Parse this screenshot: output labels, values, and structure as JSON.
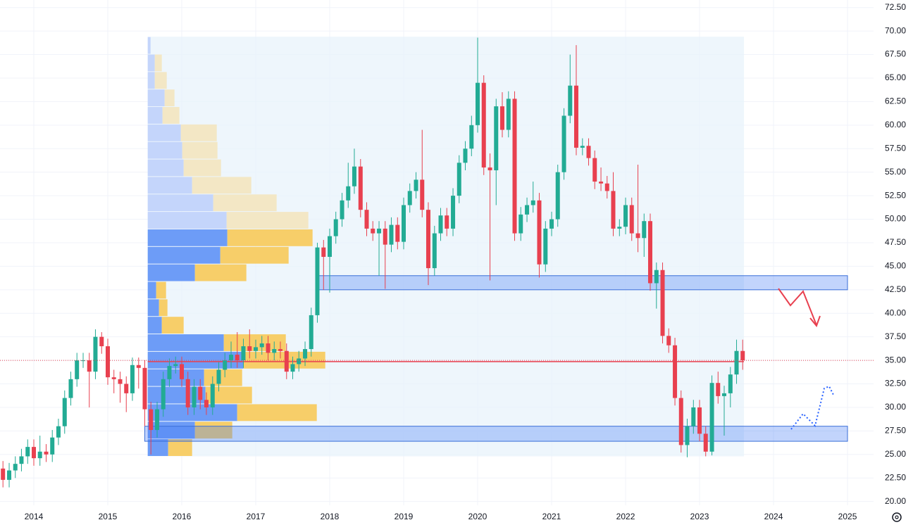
{
  "chart_data": {
    "type": "candlestick",
    "x": [
      2013.583,
      2013.667,
      2013.75,
      2013.833,
      2013.917,
      2014.0,
      2014.083,
      2014.167,
      2014.25,
      2014.333,
      2014.417,
      2014.5,
      2014.583,
      2014.667,
      2014.75,
      2014.833,
      2014.917,
      2015.0,
      2015.083,
      2015.167,
      2015.25,
      2015.333,
      2015.417,
      2015.5,
      2015.583,
      2015.667,
      2015.75,
      2015.833,
      2015.917,
      2016.0,
      2016.083,
      2016.167,
      2016.25,
      2016.333,
      2016.417,
      2016.5,
      2016.583,
      2016.667,
      2016.75,
      2016.833,
      2016.917,
      2017.0,
      2017.083,
      2017.167,
      2017.25,
      2017.333,
      2017.417,
      2017.5,
      2017.583,
      2017.667,
      2017.75,
      2017.833,
      2017.917,
      2018.0,
      2018.083,
      2018.167,
      2018.25,
      2018.333,
      2018.417,
      2018.5,
      2018.583,
      2018.667,
      2018.75,
      2018.833,
      2018.917,
      2019.0,
      2019.083,
      2019.167,
      2019.25,
      2019.333,
      2019.417,
      2019.5,
      2019.583,
      2019.667,
      2019.75,
      2019.833,
      2019.917,
      2020.0,
      2020.083,
      2020.167,
      2020.25,
      2020.333,
      2020.417,
      2020.5,
      2020.583,
      2020.667,
      2020.75,
      2020.833,
      2020.917,
      2021.0,
      2021.083,
      2021.167,
      2021.25,
      2021.333,
      2021.417,
      2021.5,
      2021.583,
      2021.667,
      2021.75,
      2021.833,
      2021.917,
      2022.0,
      2022.083,
      2022.167,
      2022.25,
      2022.333,
      2022.417,
      2022.5,
      2022.583,
      2022.667,
      2022.75,
      2022.833,
      2022.917,
      2023.0,
      2023.083,
      2023.167,
      2023.25,
      2023.333,
      2023.417,
      2023.5,
      2023.583
    ],
    "open": [
      23.5,
      22.3,
      23.3,
      24.0,
      24.8,
      25.8,
      24.6,
      25.3,
      25.0,
      26.8,
      28.0,
      31.0,
      33.0,
      35.0,
      35.0,
      33.8,
      37.5,
      36.5,
      33.2,
      33.0,
      32.5,
      31.5,
      34.5,
      34.2,
      29.8,
      27.6,
      29.8,
      33.0,
      34.4,
      34.6,
      33.0,
      30.0,
      32.2,
      30.8,
      30.0,
      32.5,
      34.0,
      35.0,
      35.6,
      35.0,
      36.5,
      36.0,
      36.4,
      36.8,
      35.8,
      36.2,
      36.0,
      33.8,
      34.6,
      35.2,
      36.2,
      39.8,
      47.0,
      46.0,
      48.2,
      50.0,
      52.0,
      53.5,
      55.6,
      51.0,
      49.0,
      48.5,
      49.0,
      47.3,
      49.4,
      47.6,
      51.5,
      53.0,
      54.2,
      51.0,
      44.8,
      48.5,
      50.4,
      49.0,
      52.5,
      56.0,
      57.5,
      60.0,
      64.5,
      55.5,
      55.2,
      62.0,
      59.5,
      62.8,
      48.5,
      50.5,
      51.5,
      52.0,
      45.2,
      49.0,
      50.0,
      55.0,
      61.0,
      64.2,
      57.6,
      57.8,
      56.5,
      54.0,
      53.8,
      53.0,
      49.0,
      49.2,
      51.5,
      48.5,
      48.0,
      49.8,
      43.2,
      44.6,
      37.6,
      36.6,
      31.0,
      26.0,
      28.0,
      30.0,
      27.2,
      25.3,
      32.6,
      31.2,
      31.5,
      33.5,
      36.0
    ],
    "high": [
      24.3,
      24.1,
      24.8,
      25.6,
      26.6,
      26.6,
      27.0,
      26.1,
      27.6,
      28.8,
      31.8,
      33.8,
      35.8,
      35.8,
      35.8,
      38.3,
      38.0,
      37.3,
      34.0,
      33.8,
      33.3,
      35.3,
      35.3,
      35.0,
      30.6,
      30.6,
      33.8,
      35.2,
      35.4,
      35.4,
      33.8,
      33.0,
      33.0,
      31.6,
      33.3,
      34.8,
      35.8,
      37.0,
      38.0,
      37.3,
      38.3,
      37.2,
      37.6,
      37.6,
      37.0,
      37.0,
      36.8,
      35.4,
      36.0,
      37.0,
      40.6,
      47.5,
      47.8,
      49.0,
      50.8,
      52.8,
      56.0,
      57.5,
      56.4,
      51.8,
      49.8,
      49.8,
      49.8,
      50.2,
      50.2,
      52.3,
      53.8,
      55.0,
      59.5,
      51.8,
      49.3,
      51.2,
      51.2,
      53.3,
      56.8,
      58.3,
      61.0,
      69.3,
      65.3,
      57.0,
      62.8,
      63.5,
      63.6,
      63.6,
      51.3,
      52.3,
      54.0,
      52.8,
      49.8,
      50.8,
      55.8,
      61.8,
      67.5,
      68.5,
      58.6,
      58.6,
      57.3,
      55.5,
      54.6,
      55.0,
      50.0,
      52.3,
      52.3,
      55.8,
      50.6,
      50.6,
      45.4,
      45.4,
      38.4,
      37.4,
      31.8,
      28.8,
      30.8,
      30.8,
      28.0,
      33.4,
      33.8,
      32.3,
      34.3,
      37.2,
      37.2
    ],
    "low": [
      21.5,
      21.5,
      22.5,
      23.2,
      24.0,
      23.8,
      23.8,
      24.2,
      24.2,
      26.0,
      27.2,
      30.2,
      32.2,
      34.2,
      30.0,
      33.0,
      35.7,
      32.4,
      31.5,
      30.5,
      29.5,
      30.7,
      32.0,
      28.0,
      25.0,
      26.8,
      29.0,
      32.2,
      33.6,
      32.2,
      29.2,
      29.2,
      29.8,
      29.2,
      29.2,
      31.7,
      33.2,
      34.2,
      34.2,
      34.2,
      35.2,
      35.2,
      35.6,
      35.0,
      35.0,
      35.2,
      33.0,
      33.0,
      33.8,
      34.4,
      35.4,
      39.0,
      42.5,
      42.2,
      47.4,
      49.2,
      51.2,
      52.7,
      50.2,
      48.2,
      47.7,
      44.0,
      42.6,
      46.5,
      46.8,
      46.8,
      50.7,
      52.2,
      50.2,
      43.0,
      44.0,
      47.7,
      48.2,
      48.2,
      51.7,
      55.2,
      56.7,
      59.2,
      54.7,
      43.5,
      51.5,
      58.7,
      58.7,
      47.7,
      47.7,
      49.7,
      50.7,
      43.8,
      44.4,
      48.2,
      49.2,
      54.2,
      60.2,
      56.8,
      56.8,
      55.7,
      53.2,
      53.0,
      52.2,
      48.2,
      48.2,
      48.4,
      47.7,
      46.5,
      46.0,
      42.4,
      40.5,
      36.8,
      35.8,
      30.2,
      25.2,
      24.7,
      27.2,
      26.4,
      24.8,
      24.9,
      30.4,
      27.0,
      30.0,
      32.5,
      34.0
    ],
    "close": [
      22.3,
      23.3,
      24.0,
      24.8,
      25.8,
      24.6,
      25.3,
      25.0,
      26.8,
      28.0,
      31.0,
      33.0,
      35.0,
      35.0,
      33.8,
      37.5,
      36.5,
      33.2,
      33.0,
      32.5,
      31.5,
      34.5,
      34.2,
      29.8,
      27.6,
      29.8,
      33.0,
      34.4,
      34.6,
      33.0,
      30.0,
      32.2,
      30.8,
      30.0,
      32.5,
      34.0,
      35.0,
      35.6,
      35.0,
      36.5,
      36.0,
      36.4,
      36.8,
      35.8,
      36.2,
      36.0,
      33.8,
      34.6,
      35.2,
      36.2,
      39.8,
      47.0,
      46.0,
      48.2,
      50.0,
      52.0,
      53.5,
      55.6,
      51.0,
      49.0,
      48.5,
      49.0,
      47.3,
      49.4,
      47.6,
      51.5,
      53.0,
      54.2,
      51.0,
      44.8,
      48.5,
      50.4,
      49.0,
      52.5,
      56.0,
      57.5,
      60.0,
      64.5,
      55.5,
      55.2,
      62.0,
      59.5,
      62.8,
      48.5,
      50.5,
      51.5,
      52.0,
      45.2,
      49.0,
      50.0,
      55.0,
      61.0,
      64.2,
      57.6,
      57.8,
      56.5,
      54.0,
      53.8,
      53.0,
      49.0,
      49.2,
      51.5,
      48.5,
      48.0,
      49.8,
      43.2,
      44.6,
      37.6,
      36.6,
      31.0,
      26.0,
      28.0,
      30.0,
      27.2,
      25.3,
      32.6,
      31.2,
      31.5,
      33.5,
      36.0,
      35.0
    ],
    "up_color": "#22ab94",
    "down_color": "#e8404f",
    "xlim": [
      2013.543,
      2025.352
    ],
    "ylim": [
      19.6,
      73.3
    ],
    "xticks": [
      2014,
      2015,
      2016,
      2017,
      2018,
      2019,
      2020,
      2021,
      2022,
      2023,
      2024,
      2025
    ],
    "yticks": [
      {
        "value": 20,
        "label": "20.00"
      },
      {
        "value": 22.5,
        "label": "22.50"
      },
      {
        "value": 25,
        "label": "25.00"
      },
      {
        "value": 27.5,
        "label": "27.50"
      },
      {
        "value": 30,
        "label": "30.00"
      },
      {
        "value": 32.5,
        "label": "32.50"
      },
      {
        "value": 35,
        "label": "35.00"
      },
      {
        "value": 37.5,
        "label": "37.50"
      },
      {
        "value": 40,
        "label": "40.00"
      },
      {
        "value": 42.5,
        "label": "42.50"
      },
      {
        "value": 45,
        "label": "45.00"
      },
      {
        "value": 47.5,
        "label": "47.50"
      },
      {
        "value": 50,
        "label": "50.00"
      },
      {
        "value": 52.5,
        "label": "52.50"
      },
      {
        "value": 55,
        "label": "55.00"
      },
      {
        "value": 57.5,
        "label": "57.50"
      },
      {
        "value": 60,
        "label": "60.00"
      },
      {
        "value": 62.5,
        "label": "62.50"
      },
      {
        "value": 65,
        "label": "65.00"
      },
      {
        "value": 67.5,
        "label": "67.50"
      },
      {
        "value": 70,
        "label": "70.00"
      },
      {
        "value": 72.5,
        "label": "72.50"
      }
    ],
    "grid": true,
    "volume_profile": {
      "from": 2015.54,
      "to": 2023.6,
      "low": 24.8,
      "high": 69.4,
      "up_volume": [
        29,
        67,
        127,
        82,
        80,
        136,
        108,
        20,
        16,
        12,
        67,
        103,
        113,
        112,
        93,
        63,
        51,
        49,
        47,
        21,
        24,
        10,
        10,
        4
      ],
      "down_volume": [
        34,
        53,
        113,
        66,
        54,
        116,
        88,
        31,
        12,
        14,
        73,
        97,
        121,
        116,
        90,
        84,
        53,
        50,
        51,
        24,
        14,
        17,
        10,
        0
      ],
      "value_area_high": 49.0,
      "poc": 34.87
    },
    "zones": [
      {
        "low": 42.5,
        "high": 44.0,
        "from": 2017.83,
        "to": 2025.0
      },
      {
        "low": 26.4,
        "high": 28.0,
        "from": 2015.5,
        "to": 2025.0
      }
    ]
  }
}
